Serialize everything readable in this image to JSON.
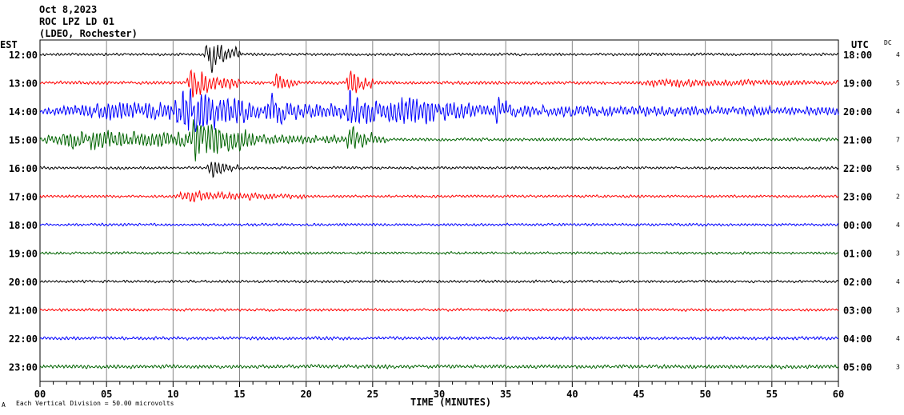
{
  "header": {
    "date": "Oct 8,2023",
    "station": "ROC LPZ LD 01",
    "network": "(LDEO, Rochester)",
    "left_tz": "EST",
    "right_tz": "UTC",
    "dc_label": "DC"
  },
  "footer": {
    "mark": "A",
    "scale_note": "Each Vertical Division =   50.00 microvolts",
    "xlabel": "TIME (MINUTES)"
  },
  "chart_data": {
    "type": "line",
    "title": "ROC LPZ LD 01 helicorder",
    "xlabel": "TIME (MINUTES)",
    "xlim": [
      0,
      60
    ],
    "x_ticks": [
      "00",
      "05",
      "10",
      "15",
      "20",
      "25",
      "30",
      "35",
      "40",
      "45",
      "50",
      "55",
      "60"
    ],
    "grid": "vertical every 5 minutes",
    "units_per_division_microvolts": 50.0,
    "colors": [
      "#000000",
      "#ff0000",
      "#0000ff",
      "#006400"
    ],
    "rows": [
      {
        "est": "12:00",
        "utc": "18:00",
        "dc": "4",
        "color": "#000000",
        "base": 0.05,
        "events": [
          [
            12.3,
            15.2,
            0.75
          ]
        ]
      },
      {
        "est": "13:00",
        "utc": "19:00",
        "dc": "5",
        "color": "#ff0000",
        "base": 0.06,
        "events": [
          [
            11,
            15,
            0.6
          ],
          [
            17.5,
            19.5,
            0.35
          ],
          [
            23,
            25,
            0.55
          ],
          [
            45,
            60,
            0.12
          ]
        ]
      },
      {
        "est": "14:00",
        "utc": "20:00",
        "dc": "4",
        "color": "#0000ff",
        "base": 0.12,
        "events": [
          [
            0,
            60,
            0.25
          ],
          [
            10,
            16,
            0.8
          ],
          [
            17,
            19,
            0.45
          ],
          [
            23,
            26,
            0.65
          ],
          [
            26,
            33,
            0.4
          ],
          [
            34,
            35.5,
            0.45
          ]
        ]
      },
      {
        "est": "15:00",
        "utc": "21:00",
        "dc": "7",
        "color": "#006400",
        "base": 0.06,
        "events": [
          [
            0,
            26,
            0.4
          ],
          [
            11,
            16,
            0.7
          ],
          [
            23,
            25,
            0.45
          ]
        ]
      },
      {
        "est": "16:00",
        "utc": "22:00",
        "dc": "5",
        "color": "#000000",
        "base": 0.05,
        "events": [
          [
            12.5,
            15,
            0.35
          ]
        ]
      },
      {
        "est": "17:00",
        "utc": "23:00",
        "dc": "2",
        "color": "#ff0000",
        "base": 0.05,
        "events": [
          [
            10,
            20,
            0.18
          ]
        ]
      },
      {
        "est": "18:00",
        "utc": "00:00",
        "dc": "4",
        "color": "#0000ff",
        "base": 0.05,
        "events": []
      },
      {
        "est": "19:00",
        "utc": "01:00",
        "dc": "3",
        "color": "#006400",
        "base": 0.05,
        "events": []
      },
      {
        "est": "20:00",
        "utc": "02:00",
        "dc": "4",
        "color": "#000000",
        "base": 0.05,
        "events": []
      },
      {
        "est": "21:00",
        "utc": "03:00",
        "dc": "3",
        "color": "#ff0000",
        "base": 0.05,
        "events": []
      },
      {
        "est": "22:00",
        "utc": "04:00",
        "dc": "4",
        "color": "#0000ff",
        "base": 0.06,
        "events": []
      },
      {
        "est": "23:00",
        "utc": "05:00",
        "dc": "3",
        "color": "#006400",
        "base": 0.07,
        "events": []
      }
    ]
  }
}
